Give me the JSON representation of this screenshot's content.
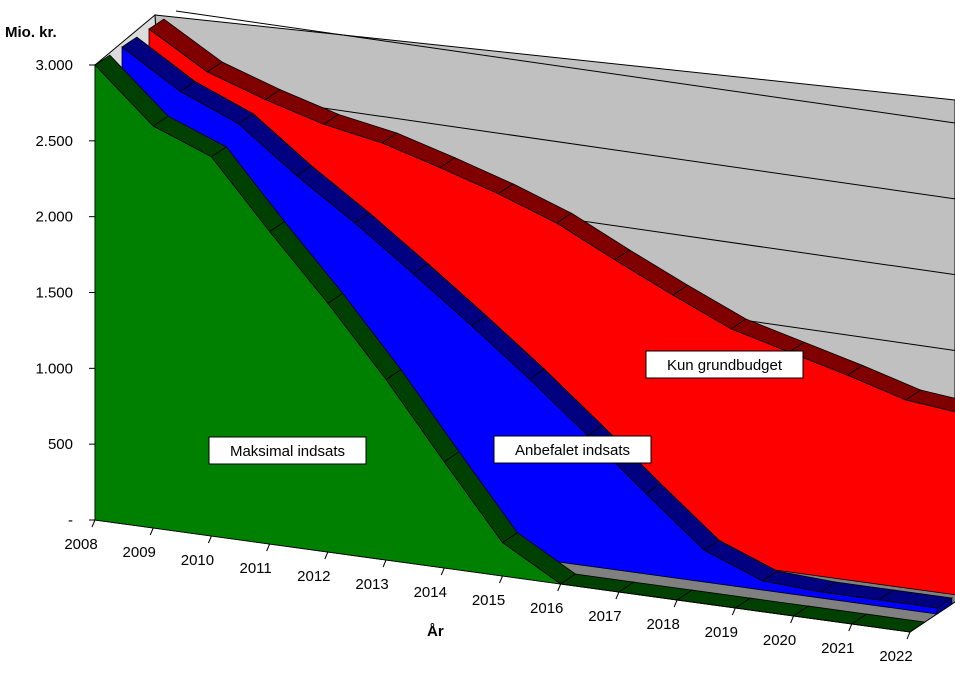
{
  "chart_data": {
    "type": "area",
    "style": "3d-stacked-area",
    "ylabel": "Mio. kr.",
    "xlabel": "År",
    "ylim": [
      0,
      3000
    ],
    "yticks": [
      "-",
      "500",
      "1.000",
      "1.500",
      "2.000",
      "2.500",
      "3.000"
    ],
    "categories": [
      "2008",
      "2009",
      "2010",
      "2011",
      "2012",
      "2013",
      "2014",
      "2015",
      "2016",
      "2017",
      "2018",
      "2019",
      "2020",
      "2021",
      "2022"
    ],
    "series": [
      {
        "name": "Kun grundbudget",
        "color": "#ff0000",
        "values": [
          3000,
          2770,
          2640,
          2530,
          2460,
          2350,
          2230,
          2090,
          1900,
          1720,
          1550,
          1450,
          1350,
          1240,
          1200
        ]
      },
      {
        "name": "Anbefalet indsats",
        "color": "#0000ff",
        "values": [
          3000,
          2760,
          2600,
          2310,
          2050,
          1770,
          1480,
          1180,
          860,
          530,
          210,
          60,
          40,
          40,
          40
        ]
      },
      {
        "name": "Maksimal indsats",
        "color": "#008000",
        "values": [
          3000,
          2650,
          2500,
          2060,
          1640,
          1190,
          700,
          220,
          0,
          0,
          0,
          0,
          0,
          0,
          0
        ]
      }
    ],
    "grid": true,
    "legend": "none",
    "colors": {
      "floor": "#808080",
      "walls": "#c0c0c0",
      "depth_edge": "#000000"
    }
  }
}
